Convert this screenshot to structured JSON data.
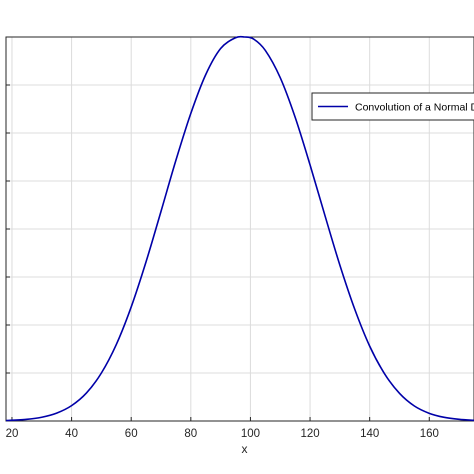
{
  "chart_data": {
    "type": "line",
    "title": "",
    "xlabel": "x",
    "ylabel": "",
    "xlim": [
      18,
      175
    ],
    "ylim": [
      0,
      1
    ],
    "grid": true,
    "x_ticks": [
      20,
      40,
      60,
      80,
      100,
      120,
      140,
      160
    ],
    "x_tick_labels": [
      "20",
      "40",
      "60",
      "80",
      "100",
      "120",
      "140",
      "160"
    ],
    "y_gridlines": [
      0,
      0.125,
      0.25,
      0.375,
      0.5,
      0.625,
      0.75,
      0.875,
      1
    ],
    "legend": {
      "placement": "right",
      "entries": [
        "Convolution of a Normal Dist"
      ]
    },
    "series": [
      {
        "name": "Convolution of a Normal Dist",
        "color": "#0000a8",
        "x": [
          18,
          25,
          30,
          35,
          40,
          45,
          50,
          55,
          60,
          65,
          70,
          75,
          80,
          85,
          90,
          95,
          98,
          101,
          105,
          110,
          115,
          120,
          125,
          130,
          135,
          140,
          145,
          150,
          155,
          160,
          165,
          170,
          175
        ],
        "y": [
          0.0013,
          0.0044,
          0.0098,
          0.0205,
          0.04,
          0.073,
          0.125,
          0.199,
          0.297,
          0.415,
          0.546,
          0.679,
          0.801,
          0.902,
          0.97,
          0.998,
          1.0,
          0.995,
          0.965,
          0.894,
          0.791,
          0.667,
          0.535,
          0.406,
          0.291,
          0.195,
          0.123,
          0.072,
          0.039,
          0.02,
          0.0096,
          0.0043,
          0.0018
        ]
      }
    ]
  }
}
